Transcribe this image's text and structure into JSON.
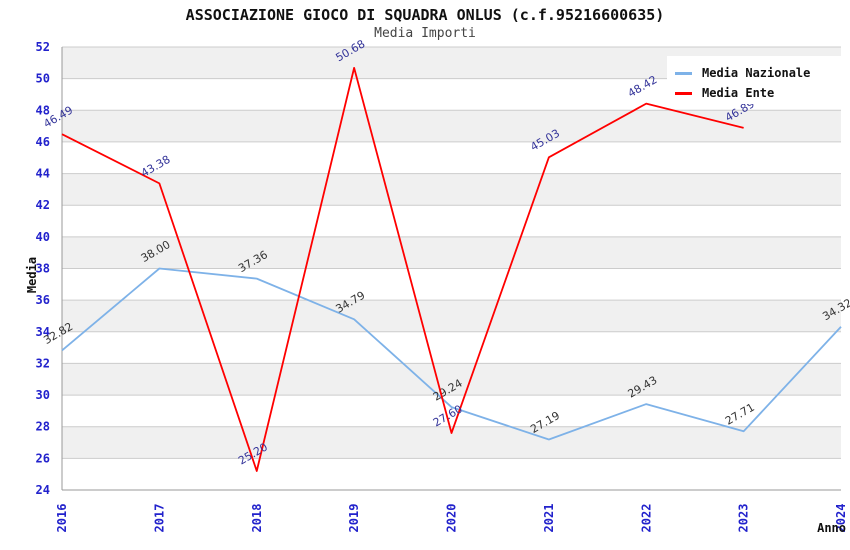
{
  "header": {
    "title": "ASSOCIAZIONE GIOCO DI SQUADRA ONLUS (c.f.95216600635)",
    "subtitle": "Media Importi"
  },
  "legend": {
    "position": "top-right",
    "items": [
      {
        "label": "Media Nazionale",
        "color": "#7eb2e8"
      },
      {
        "label": "Media Ente",
        "color": "#ff0000"
      }
    ]
  },
  "axes": {
    "x_title": "Anno",
    "y_title": "Media",
    "tick_label_color": "#2222cc",
    "x_tick_labels": [
      "2016",
      "2017",
      "2018",
      "2019",
      "2020",
      "2021",
      "2022",
      "2023",
      "2024"
    ],
    "y_tick_labels": [
      52,
      50,
      48,
      46,
      44,
      42,
      40,
      38,
      36,
      34,
      32,
      30,
      28,
      26,
      24
    ]
  },
  "chart_data": {
    "type": "line",
    "title": "ASSOCIAZIONE GIOCO DI SQUADRA ONLUS (c.f.95216600635)",
    "subtitle": "Media Importi",
    "xlabel": "Anno",
    "ylabel": "Media",
    "categories": [
      2016,
      2017,
      2018,
      2019,
      2020,
      2021,
      2022,
      2023,
      2024
    ],
    "ylim": [
      24,
      52
    ],
    "ytick_step": 2,
    "grid": "horizontal",
    "band_colors": [
      "#f0f0f0",
      "#ffffff"
    ],
    "gridline_color": "#cccccc",
    "axis_line_color": "#999999",
    "legend_position": "top-right",
    "series": [
      {
        "name": "Media Nazionale",
        "color": "#7eb2e8",
        "label_color": "#333333",
        "values": [
          32.82,
          38.0,
          37.36,
          34.79,
          29.24,
          27.19,
          29.43,
          27.71,
          34.32
        ]
      },
      {
        "name": "Media Ente",
        "color": "#ff0000",
        "label_color": "#333399",
        "values": [
          46.49,
          43.38,
          25.2,
          50.68,
          27.6,
          45.03,
          48.42,
          46.89,
          null
        ]
      }
    ]
  }
}
